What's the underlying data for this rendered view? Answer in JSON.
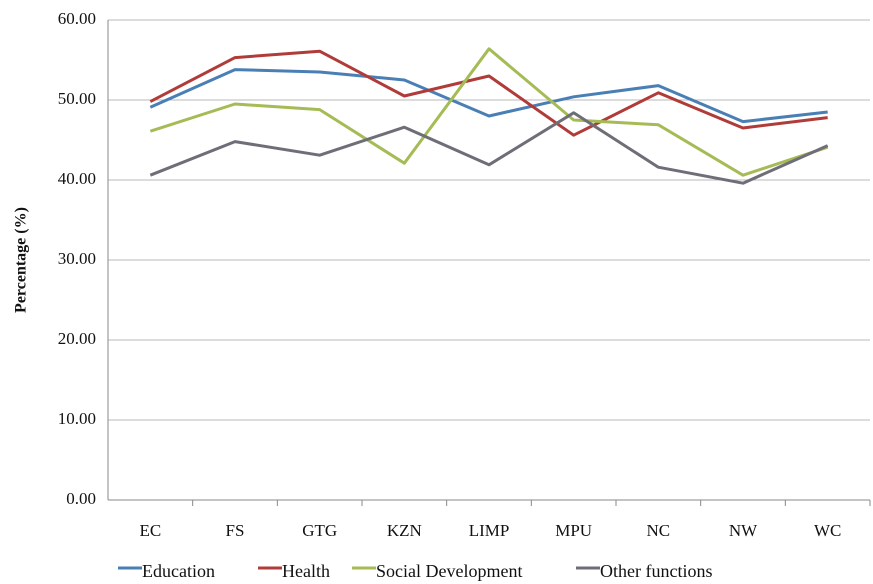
{
  "chart_data": {
    "type": "line",
    "y_label": "Percentage (%)",
    "categories": [
      "EC",
      "FS",
      "GTG",
      "KZN",
      "LIMP",
      "MPU",
      "NC",
      "NW",
      "WC"
    ],
    "series": [
      {
        "name": "Education",
        "color": "#4a7fb5",
        "values": [
          49.1,
          53.8,
          53.5,
          52.5,
          48.0,
          50.4,
          51.8,
          47.3,
          48.5
        ]
      },
      {
        "name": "Health",
        "color": "#b03c3a",
        "values": [
          49.8,
          55.3,
          56.1,
          50.5,
          53.0,
          45.6,
          50.9,
          46.5,
          47.8
        ]
      },
      {
        "name": "Social Development",
        "color": "#a5bb55",
        "values": [
          46.1,
          49.5,
          48.8,
          42.1,
          56.4,
          47.5,
          46.9,
          40.6,
          44.1
        ]
      },
      {
        "name": "Other functions",
        "color": "#6e6e78",
        "values": [
          40.6,
          44.8,
          43.1,
          46.6,
          41.9,
          48.4,
          41.6,
          39.6,
          44.3
        ]
      }
    ],
    "ylim": [
      0,
      60
    ],
    "yticks": [
      {
        "value": 0,
        "label": "0.00"
      },
      {
        "value": 10,
        "label": "10.00"
      },
      {
        "value": 20,
        "label": "20.00"
      },
      {
        "value": 30,
        "label": "30.00"
      },
      {
        "value": 40,
        "label": "40.00"
      },
      {
        "value": 50,
        "label": "50.00"
      },
      {
        "value": 60,
        "label": "60.00"
      }
    ],
    "grid": true,
    "legend": "bottom"
  }
}
